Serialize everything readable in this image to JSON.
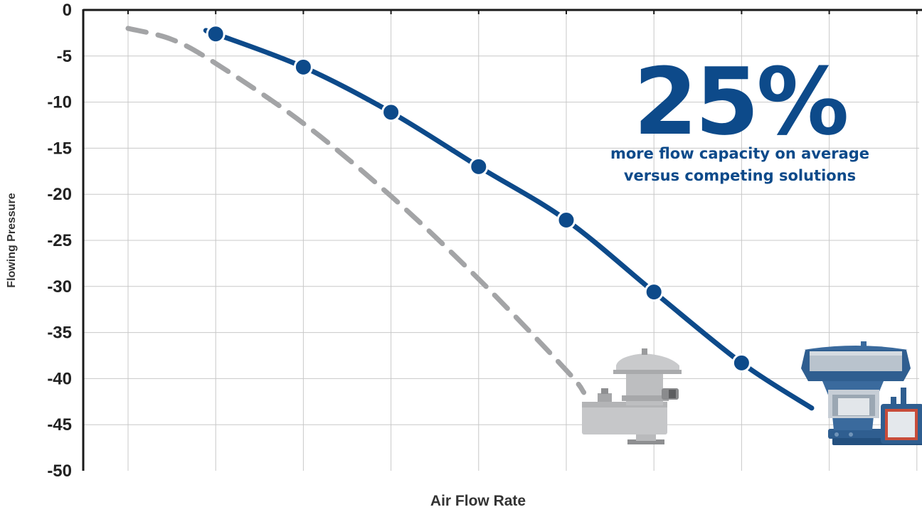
{
  "chart_data": {
    "type": "line",
    "xlabel": "Air Flow Rate",
    "ylabel": "Flowing Pressure",
    "ylim": [
      -50,
      0
    ],
    "yticks": [
      "0",
      "-5",
      "-10",
      "-15",
      "-20",
      "-25",
      "-30",
      "-35",
      "-40",
      "-45",
      "-50"
    ],
    "grid": true,
    "series": [
      {
        "style": "solid-with-markers",
        "color": "#0d4a8a",
        "points": [
          [
            1,
            -2.6
          ],
          [
            2,
            -6.2
          ],
          [
            3,
            -11.1
          ],
          [
            4,
            -17.0
          ],
          [
            5,
            -22.8
          ],
          [
            6,
            -30.6
          ],
          [
            7,
            -38.3
          ]
        ],
        "line_start": [
          0.9,
          -2.3
        ],
        "line_end": [
          7.8,
          -43.2
        ]
      },
      {
        "style": "dashed",
        "color": "#a3a4a6",
        "points": [
          [
            0,
            -2.0
          ],
          [
            0.5,
            -3.2
          ],
          [
            1,
            -5.8
          ],
          [
            2,
            -12.3
          ],
          [
            3,
            -20.2
          ],
          [
            4,
            -29.2
          ],
          [
            5,
            -39.1
          ],
          [
            5.2,
            -41.5
          ]
        ]
      }
    ],
    "annotation": {
      "headline": "25%",
      "line1": "more flow capacity on average",
      "line2": "versus competing solutions"
    }
  },
  "colors": {
    "brand_blue": "#0d4a8a",
    "competitor_gray": "#a3a4a6",
    "grid": "#c8c8c8"
  },
  "images": {
    "competitor_product": "gray-vent-valve-illustration",
    "featured_product": "blue-vent-valve-illustration"
  }
}
